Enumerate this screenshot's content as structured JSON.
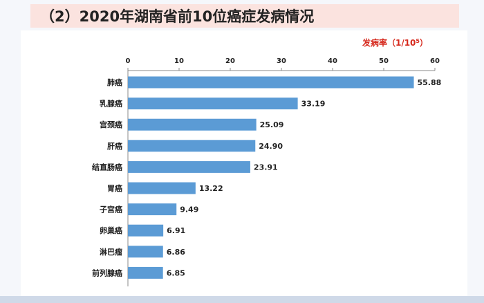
{
  "title": "（2）2020年湖南省前10位癌症发病情况",
  "chart_data": {
    "type": "bar",
    "orientation": "horizontal",
    "categories": [
      "肺癌",
      "乳腺癌",
      "宫颈癌",
      "肝癌",
      "结直肠癌",
      "胃癌",
      "子宫癌",
      "卵巢癌",
      "淋巴瘤",
      "前列腺癌"
    ],
    "values": [
      55.88,
      33.19,
      25.09,
      24.9,
      23.91,
      13.22,
      9.49,
      6.91,
      6.86,
      6.85
    ],
    "value_labels": [
      "55.88",
      "33.19",
      "25.09",
      "24.90",
      "23.91",
      "13.22",
      "9.49",
      "6.91",
      "6.86",
      "6.85"
    ],
    "xlim": [
      0,
      60
    ],
    "ticks": [
      "0",
      "10",
      "20",
      "30",
      "40",
      "50",
      "60"
    ],
    "unit_label": "发病率（1/10",
    "unit_exponent": "5",
    "unit_close": "）",
    "axis_position": "top",
    "bar_color": "#5b9bd5",
    "grid": false
  }
}
